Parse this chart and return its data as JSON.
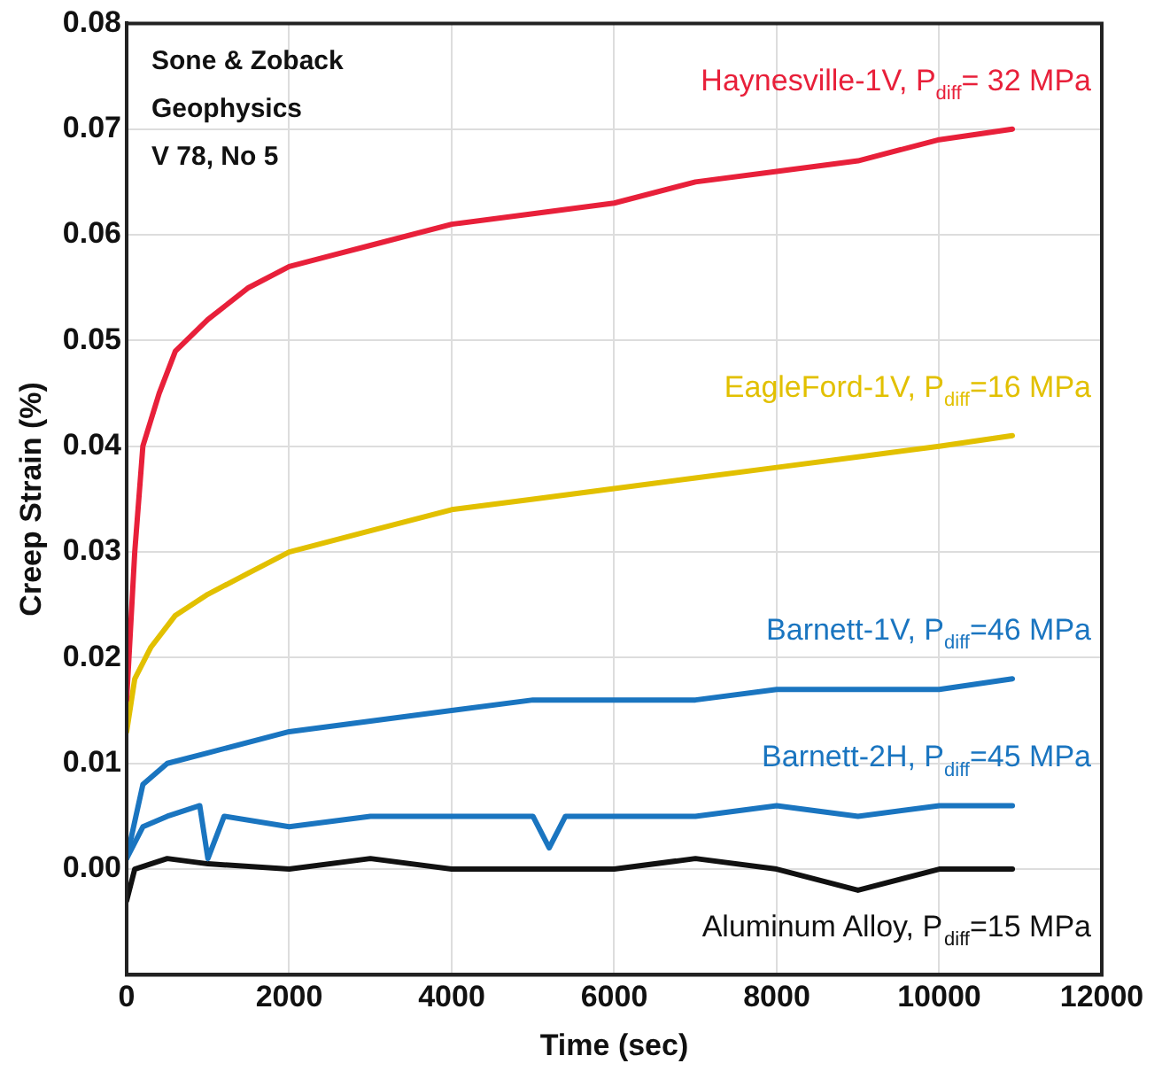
{
  "chart_data": {
    "type": "line",
    "xlabel": "Time (sec)",
    "ylabel": "Creep Strain (%)",
    "xlim": [
      0,
      12000
    ],
    "xticks": [
      0,
      2000,
      4000,
      6000,
      8000,
      10000,
      12000
    ],
    "ylim": [
      -0.01,
      0.08
    ],
    "yticks": [
      {
        "value": 0,
        "label": "0.00"
      },
      0.01,
      0.02,
      0.03,
      0.04,
      0.05,
      0.06,
      0.07,
      0.08
    ],
    "grid": true,
    "legend": false,
    "marker": "none",
    "line_style": "solid",
    "annotations": [
      "Sone & Zoback",
      "Geophysics",
      "V 78, No 5"
    ],
    "series": [
      {
        "name": "Haynesville-1V, P$_{diff}$= 32 MPa",
        "color": "#e8203a",
        "x": [
          0,
          100,
          200,
          400,
          600,
          1000,
          1500,
          2000,
          2500,
          3000,
          4000,
          5000,
          6000,
          7000,
          8000,
          9000,
          10000,
          10900
        ],
        "values": [
          0.016,
          0.03,
          0.04,
          0.045,
          0.049,
          0.052,
          0.055,
          0.057,
          0.058,
          0.059,
          0.061,
          0.062,
          0.063,
          0.065,
          0.066,
          0.067,
          0.069,
          0.07
        ]
      },
      {
        "name": "EagleFord-1V, P$_{diff}$=16 MPa",
        "color": "#e2c000",
        "x": [
          0,
          100,
          300,
          600,
          1000,
          1500,
          2000,
          3000,
          4000,
          5000,
          6000,
          7000,
          8000,
          9000,
          10000,
          10900
        ],
        "values": [
          0.013,
          0.018,
          0.021,
          0.024,
          0.026,
          0.028,
          0.03,
          0.032,
          0.034,
          0.035,
          0.036,
          0.037,
          0.038,
          0.039,
          0.04,
          0.041
        ]
      },
      {
        "name": "Barnett-1V, P$_{diff}$=46 MPa",
        "color": "#1a75c0",
        "x": [
          0,
          200,
          500,
          1000,
          2000,
          3000,
          4000,
          5000,
          6000,
          7000,
          8000,
          9000,
          10000,
          10900
        ],
        "values": [
          0.001,
          0.008,
          0.01,
          0.011,
          0.013,
          0.014,
          0.015,
          0.016,
          0.016,
          0.016,
          0.017,
          0.017,
          0.017,
          0.018
        ]
      },
      {
        "name": "Barnett-2H, P$_{diff}$=45 MPa",
        "color": "#1a75c0",
        "x": [
          0,
          200,
          500,
          900,
          1000,
          1200,
          2000,
          3000,
          4000,
          5000,
          5200,
          5400,
          6000,
          7000,
          8000,
          9000,
          10000,
          10900
        ],
        "values": [
          0.001,
          0.004,
          0.005,
          0.006,
          0.001,
          0.005,
          0.004,
          0.005,
          0.005,
          0.005,
          0.002,
          0.005,
          0.005,
          0.005,
          0.006,
          0.005,
          0.006,
          0.006
        ]
      },
      {
        "name": "Aluminum Alloy, P$_{diff}$=15 MPa",
        "color": "#111111",
        "x": [
          0,
          100,
          500,
          1000,
          2000,
          3000,
          4000,
          5000,
          6000,
          7000,
          8000,
          9000,
          10000,
          10900
        ],
        "values": [
          -0.003,
          0,
          0.001,
          0.0005,
          0,
          0.001,
          0,
          0,
          0,
          0.001,
          0,
          -0.002,
          0,
          0
        ]
      }
    ]
  }
}
